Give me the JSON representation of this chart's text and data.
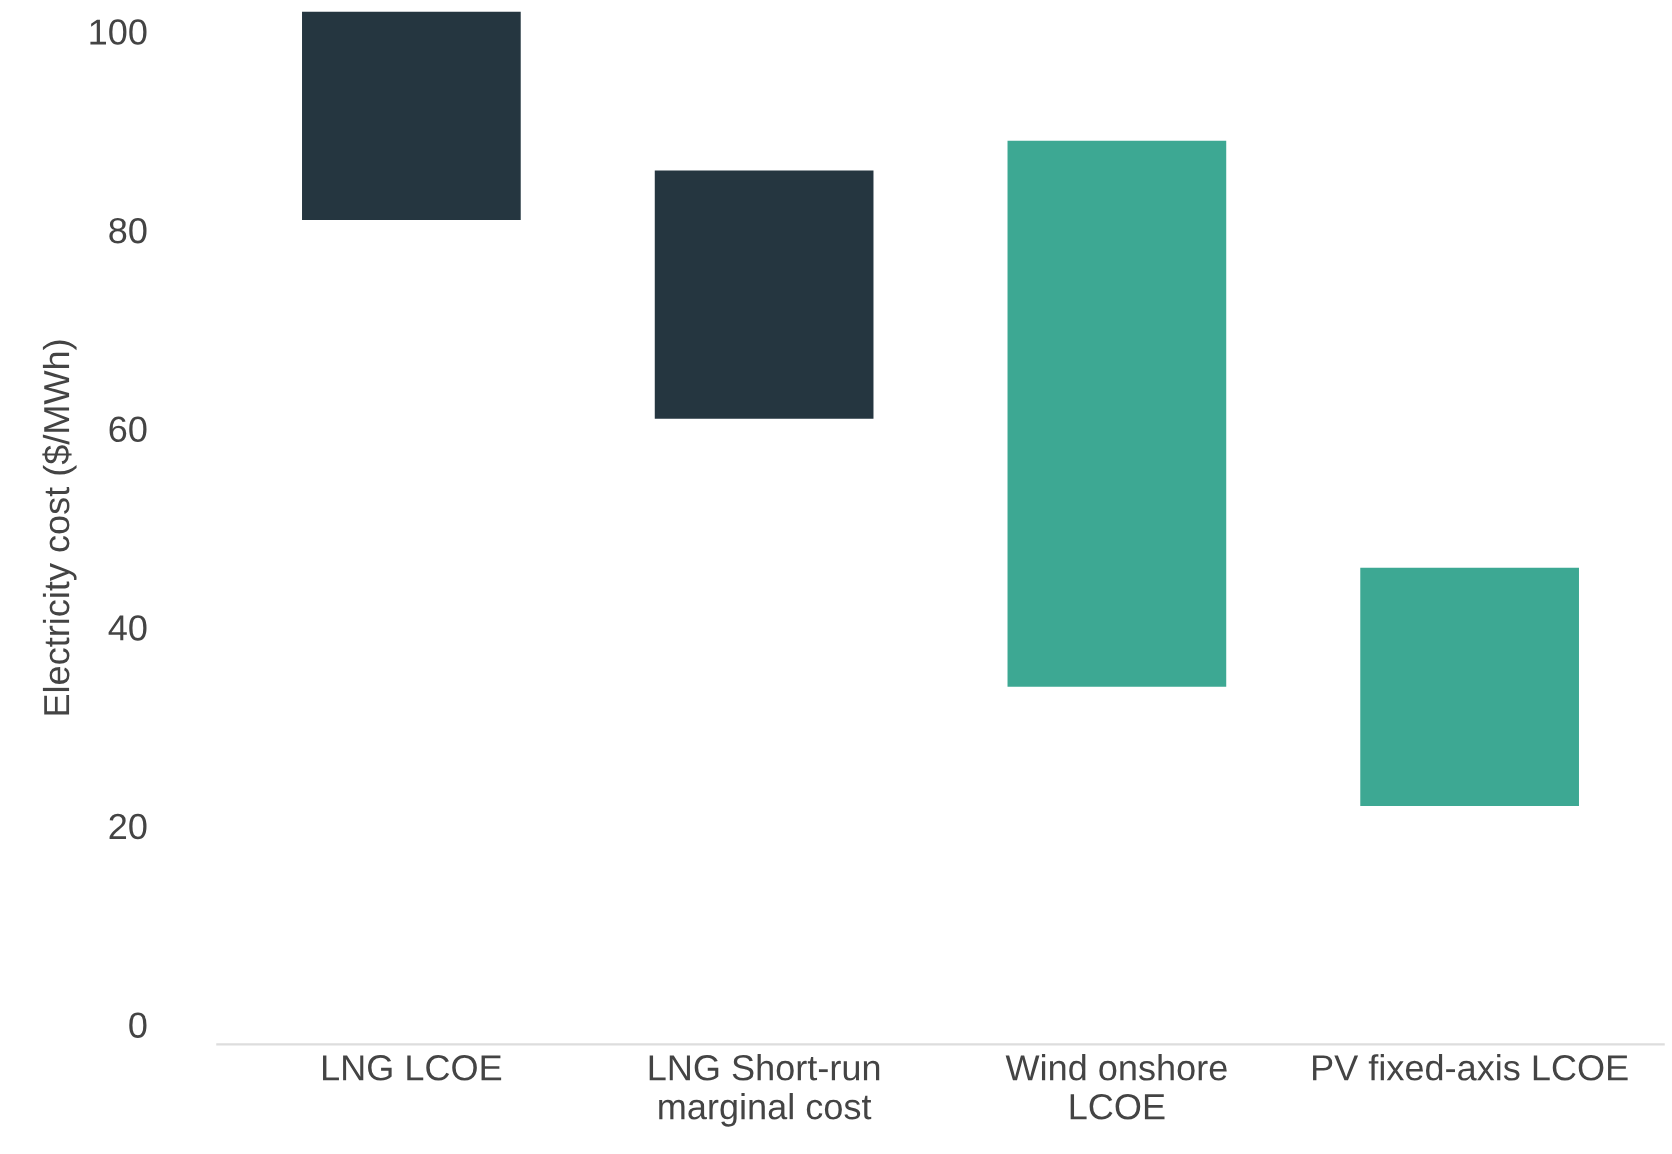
{
  "chart_data": {
    "type": "bar",
    "ylabel": "Electricity cost ($/MWh)",
    "categories": [
      "LNG LCOE",
      "LNG Short-run\nmarginal cost",
      "Wind onshore\nLCOE",
      "PV fixed-axis LCOE"
    ],
    "base": [
      81,
      61,
      34,
      22
    ],
    "values": [
      21,
      25,
      55,
      24
    ],
    "colors": [
      "#253640",
      "#253640",
      "#3da893",
      "#3da893"
    ],
    "ylim": [
      -2,
      102
    ],
    "yticks": [
      0,
      20,
      40,
      60,
      80,
      100
    ],
    "grid": false,
    "legend": false
  }
}
